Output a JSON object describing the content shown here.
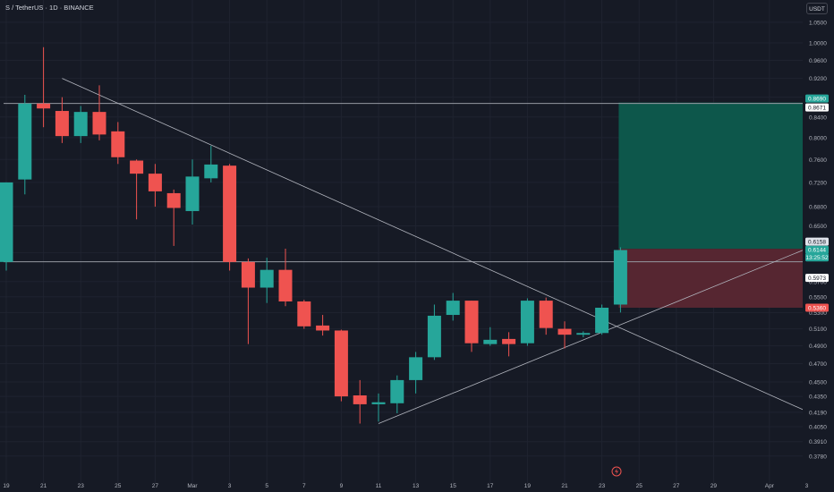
{
  "header": {
    "symbol_line": "S / TetherUS · 1D · BINANCE",
    "currency": "USDT"
  },
  "colors": {
    "background": "#161a25",
    "up": "#26a69a",
    "down": "#ef5350",
    "profit_zone": "#0d5b4d",
    "loss_zone": "#5a2731",
    "line": "#b2b5be",
    "level_line": "#9598a1",
    "label_dark": "#ffffff"
  },
  "chart_data": {
    "type": "candlestick",
    "title": "S / TetherUS · 1D · BINANCE",
    "y_unit": "USDT",
    "y_range": [
      0.37,
      1.08
    ],
    "y_scale": "log",
    "y_ticks": [
      "1.0500",
      "1.0000",
      "0.9600",
      "0.9200",
      "0.8800",
      "0.8400",
      "0.8000",
      "0.7600",
      "0.7200",
      "0.6800",
      "0.6500",
      "0.6100",
      "0.5700",
      "0.5500",
      "0.5300",
      "0.5100",
      "0.4900",
      "0.4700",
      "0.4500",
      "0.4350",
      "0.4190",
      "0.4050",
      "0.3910",
      "0.3780"
    ],
    "x_ticks": [
      "19",
      "21",
      "23",
      "25",
      "27",
      "Mar",
      "3",
      "5",
      "7",
      "9",
      "11",
      "13",
      "15",
      "17",
      "19",
      "21",
      "23",
      "25",
      "27",
      "29",
      "Apr",
      "3"
    ],
    "x_tick_day_index": [
      0,
      2,
      4,
      6,
      8,
      10,
      12,
      14,
      16,
      18,
      20,
      22,
      24,
      26,
      28,
      30,
      32,
      34,
      36,
      38,
      41,
      43
    ],
    "candles": [
      {
        "d": 0,
        "o": 0.597,
        "h": 0.72,
        "l": 0.585,
        "c": 0.72
      },
      {
        "d": 1,
        "o": 0.725,
        "h": 0.885,
        "l": 0.7,
        "c": 0.867
      },
      {
        "d": 2,
        "o": 0.867,
        "h": 0.99,
        "l": 0.82,
        "c": 0.857
      },
      {
        "d": 3,
        "o": 0.852,
        "h": 0.88,
        "l": 0.79,
        "c": 0.803
      },
      {
        "d": 4,
        "o": 0.803,
        "h": 0.862,
        "l": 0.79,
        "c": 0.85
      },
      {
        "d": 5,
        "o": 0.85,
        "h": 0.905,
        "l": 0.795,
        "c": 0.806
      },
      {
        "d": 6,
        "o": 0.812,
        "h": 0.83,
        "l": 0.752,
        "c": 0.764
      },
      {
        "d": 7,
        "o": 0.758,
        "h": 0.76,
        "l": 0.66,
        "c": 0.735
      },
      {
        "d": 8,
        "o": 0.735,
        "h": 0.752,
        "l": 0.68,
        "c": 0.705
      },
      {
        "d": 9,
        "o": 0.702,
        "h": 0.708,
        "l": 0.62,
        "c": 0.678
      },
      {
        "d": 10,
        "o": 0.673,
        "h": 0.76,
        "l": 0.652,
        "c": 0.73
      },
      {
        "d": 11,
        "o": 0.727,
        "h": 0.785,
        "l": 0.72,
        "c": 0.751
      },
      {
        "d": 12,
        "o": 0.749,
        "h": 0.752,
        "l": 0.585,
        "c": 0.597
      },
      {
        "d": 13,
        "o": 0.597,
        "h": 0.602,
        "l": 0.492,
        "c": 0.562
      },
      {
        "d": 14,
        "o": 0.562,
        "h": 0.603,
        "l": 0.542,
        "c": 0.586
      },
      {
        "d": 15,
        "o": 0.586,
        "h": 0.616,
        "l": 0.538,
        "c": 0.544
      },
      {
        "d": 16,
        "o": 0.544,
        "h": 0.546,
        "l": 0.51,
        "c": 0.513
      },
      {
        "d": 17,
        "o": 0.514,
        "h": 0.527,
        "l": 0.502,
        "c": 0.508
      },
      {
        "d": 18,
        "o": 0.508,
        "h": 0.509,
        "l": 0.43,
        "c": 0.435
      },
      {
        "d": 19,
        "o": 0.436,
        "h": 0.452,
        "l": 0.408,
        "c": 0.427
      },
      {
        "d": 20,
        "o": 0.427,
        "h": 0.438,
        "l": 0.41,
        "c": 0.429
      },
      {
        "d": 21,
        "o": 0.428,
        "h": 0.457,
        "l": 0.418,
        "c": 0.452
      },
      {
        "d": 22,
        "o": 0.452,
        "h": 0.483,
        "l": 0.438,
        "c": 0.477
      },
      {
        "d": 23,
        "o": 0.477,
        "h": 0.54,
        "l": 0.474,
        "c": 0.526
      },
      {
        "d": 24,
        "o": 0.527,
        "h": 0.555,
        "l": 0.52,
        "c": 0.545
      },
      {
        "d": 25,
        "o": 0.545,
        "h": 0.545,
        "l": 0.483,
        "c": 0.493
      },
      {
        "d": 26,
        "o": 0.492,
        "h": 0.512,
        "l": 0.49,
        "c": 0.497
      },
      {
        "d": 27,
        "o": 0.498,
        "h": 0.506,
        "l": 0.478,
        "c": 0.492
      },
      {
        "d": 28,
        "o": 0.493,
        "h": 0.548,
        "l": 0.49,
        "c": 0.545
      },
      {
        "d": 29,
        "o": 0.545,
        "h": 0.549,
        "l": 0.503,
        "c": 0.511
      },
      {
        "d": 30,
        "o": 0.51,
        "h": 0.519,
        "l": 0.487,
        "c": 0.503
      },
      {
        "d": 31,
        "o": 0.503,
        "h": 0.507,
        "l": 0.5,
        "c": 0.505
      },
      {
        "d": 32,
        "o": 0.505,
        "h": 0.54,
        "l": 0.503,
        "c": 0.536
      },
      {
        "d": 33,
        "o": 0.54,
        "h": 0.618,
        "l": 0.53,
        "c": 0.614
      }
    ],
    "horizontal_levels": [
      0.8671,
      0.5973
    ],
    "trendlines": [
      {
        "d1": 3,
        "p1": 0.92,
        "d2": 43,
        "p2": 0.42
      },
      {
        "d1": 20,
        "p1": 0.408,
        "d2": 43,
        "p2": 0.616
      }
    ],
    "position": {
      "d_start": 33,
      "d_end": 43,
      "target": 0.869,
      "entry": 0.6158,
      "stop": 0.536
    },
    "price_labels": [
      {
        "text": "0.8690",
        "value": 0.869,
        "kind": "target"
      },
      {
        "text": "0.8671",
        "value": 0.8671,
        "kind": "level"
      },
      {
        "text": "0.6158",
        "value": 0.6158,
        "kind": "entry"
      },
      {
        "text": "0.6144",
        "value": 0.6144,
        "kind": "last"
      },
      {
        "text": "13:25:52",
        "value": 0.6144,
        "kind": "countdown"
      },
      {
        "text": "0.5973",
        "value": 0.5973,
        "kind": "level"
      },
      {
        "text": "0.5360",
        "value": 0.536,
        "kind": "stop"
      }
    ]
  }
}
